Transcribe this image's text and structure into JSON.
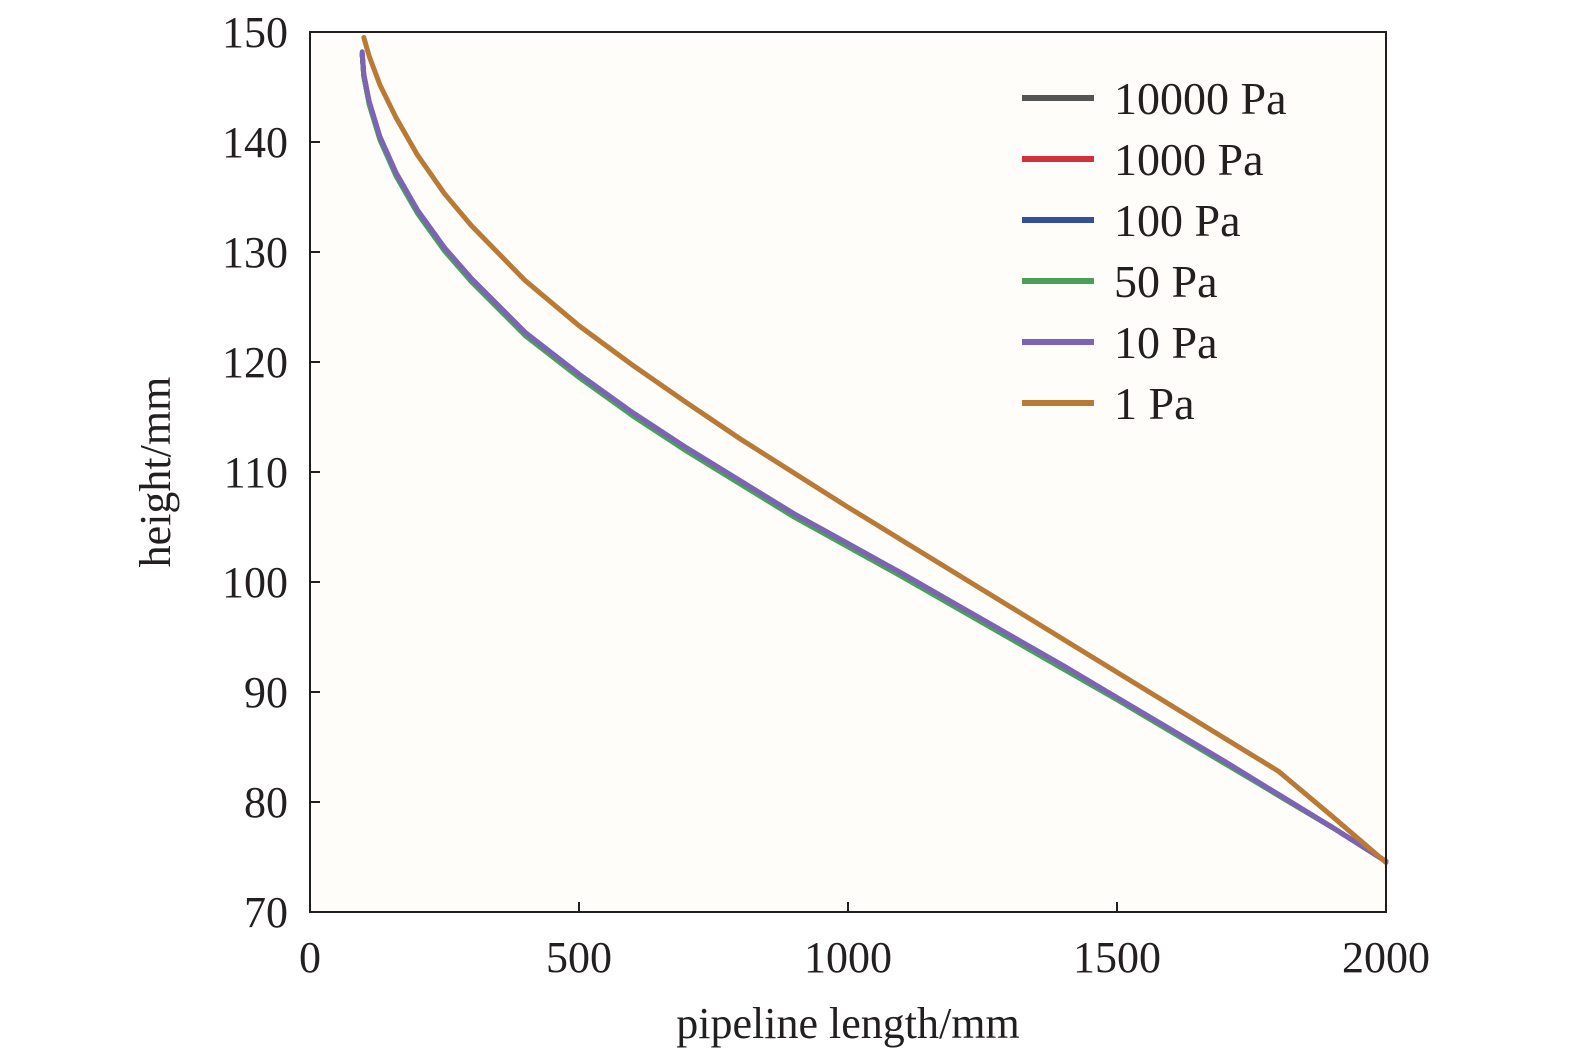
{
  "chart_data": {
    "type": "line",
    "title": "",
    "xlabel": "pipeline length/mm",
    "ylabel": "height/mm",
    "xlim": [
      0,
      2000
    ],
    "ylim": [
      70,
      150
    ],
    "xticks": [
      0,
      500,
      1000,
      1500,
      2000
    ],
    "yticks": [
      70,
      80,
      90,
      100,
      110,
      120,
      130,
      140,
      150
    ],
    "grid": false,
    "legend_position": "top-right",
    "series": [
      {
        "name": "10000 Pa",
        "color": "#555555",
        "x": [
          97,
          100,
          110,
          130,
          160,
          200,
          250,
          300,
          400,
          500,
          600,
          700,
          800,
          900,
          1000,
          1100,
          1200,
          1300,
          1400,
          1500,
          1600,
          1700,
          1800,
          1900,
          2000
        ],
        "y": [
          148,
          146,
          143.5,
          140.3,
          137,
          133.6,
          130.2,
          127.4,
          122.5,
          118.7,
          115.2,
          112,
          109,
          106,
          103.3,
          100.6,
          97.8,
          95,
          92.2,
          89.4,
          86.5,
          83.6,
          80.6,
          77.7,
          74.6
        ]
      },
      {
        "name": "1000 Pa",
        "color": "#d13239",
        "x": [
          97,
          100,
          110,
          130,
          160,
          200,
          250,
          300,
          400,
          500,
          600,
          700,
          800,
          900,
          1000,
          1100,
          1200,
          1300,
          1400,
          1500,
          1600,
          1700,
          1800,
          1900,
          2000
        ],
        "y": [
          148,
          146,
          143.5,
          140.3,
          137,
          133.6,
          130.2,
          127.4,
          122.5,
          118.7,
          115.2,
          112,
          109,
          106,
          103.3,
          100.6,
          97.8,
          95,
          92.2,
          89.4,
          86.5,
          83.6,
          80.6,
          77.7,
          74.6
        ]
      },
      {
        "name": "100 Pa",
        "color": "#344f9c",
        "x": [
          97,
          100,
          110,
          130,
          160,
          200,
          250,
          300,
          400,
          500,
          600,
          700,
          800,
          900,
          1000,
          1100,
          1200,
          1300,
          1400,
          1500,
          1600,
          1700,
          1800,
          1900,
          2000
        ],
        "y": [
          148,
          146,
          143.5,
          140.3,
          137,
          133.6,
          130.2,
          127.4,
          122.5,
          118.7,
          115.2,
          112,
          109,
          106,
          103.3,
          100.6,
          97.8,
          95,
          92.2,
          89.4,
          86.5,
          83.6,
          80.6,
          77.7,
          74.6
        ]
      },
      {
        "name": "50 Pa",
        "color": "#4a9f5a",
        "x": [
          97,
          100,
          110,
          130,
          160,
          200,
          250,
          300,
          400,
          500,
          600,
          700,
          800,
          900,
          1000,
          1100,
          1200,
          1300,
          1400,
          1500,
          1600,
          1700,
          1800,
          1900,
          2000
        ],
        "y": [
          148,
          146,
          143.4,
          140.2,
          136.9,
          133.5,
          130.1,
          127.3,
          122.4,
          118.6,
          115.1,
          111.9,
          108.9,
          105.9,
          103.2,
          100.5,
          97.7,
          94.9,
          92.1,
          89.3,
          86.4,
          83.5,
          80.6,
          77.7,
          74.6
        ]
      },
      {
        "name": "10 Pa",
        "color": "#7c63b4",
        "x": [
          97,
          100,
          110,
          130,
          160,
          200,
          250,
          300,
          400,
          500,
          600,
          700,
          800,
          900,
          1000,
          1100,
          1200,
          1300,
          1400,
          1500,
          1600,
          1700,
          1800,
          1900,
          2000
        ],
        "y": [
          148.2,
          146.2,
          143.7,
          140.5,
          137.2,
          133.8,
          130.4,
          127.6,
          122.7,
          118.9,
          115.4,
          112.2,
          109.2,
          106.2,
          103.5,
          100.8,
          98,
          95.2,
          92.4,
          89.5,
          86.6,
          83.7,
          80.7,
          77.7,
          74.6
        ]
      },
      {
        "name": "1 Pa",
        "color": "#b97a35",
        "x": [
          100,
          110,
          130,
          160,
          200,
          250,
          300,
          400,
          500,
          600,
          700,
          800,
          900,
          1000,
          1100,
          1200,
          1300,
          1400,
          1500,
          1600,
          1700,
          1800,
          1900,
          2000
        ],
        "y": [
          149.5,
          147.8,
          145.2,
          142.2,
          138.8,
          135.3,
          132.4,
          127.4,
          123.3,
          119.7,
          116.3,
          113,
          109.9,
          106.8,
          103.8,
          100.8,
          97.8,
          94.8,
          91.8,
          88.8,
          85.8,
          82.8,
          78.7,
          74.5
        ]
      }
    ]
  }
}
